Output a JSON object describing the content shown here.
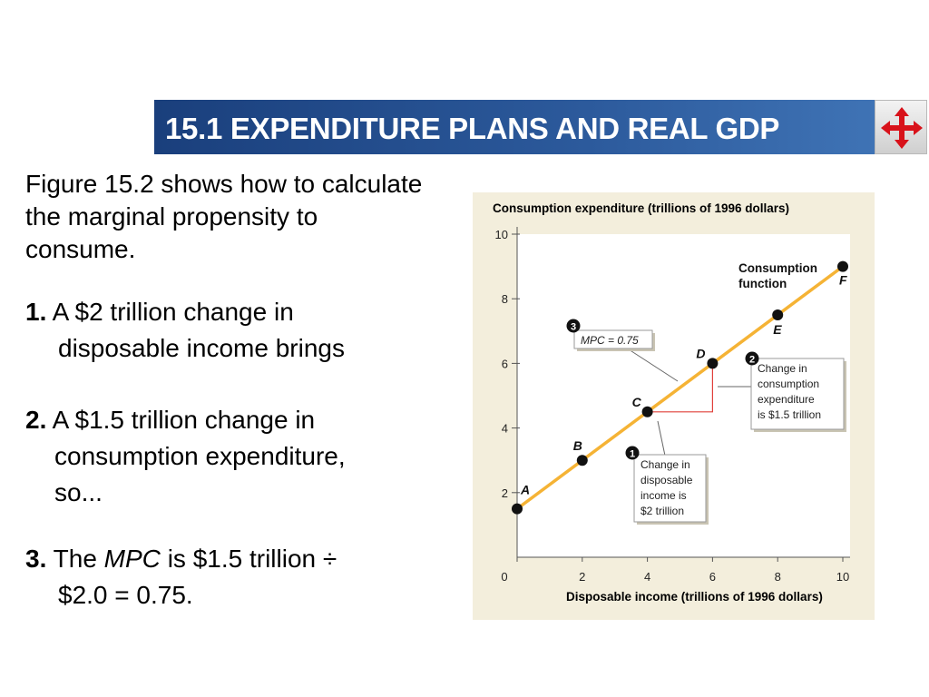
{
  "header": {
    "title": "15.1 EXPENDITURE PLANS AND REAL GDP",
    "nav_icon": "four-arrows-navigation-icon",
    "accent": "#2c5a9c",
    "nav_color": "#d8121a"
  },
  "text": {
    "intro": "Figure 15.2 shows how to calculate the marginal propensity to consume.",
    "steps": [
      {
        "number": "1.",
        "line1": "A $2 trillion change in",
        "line2": "disposable income brings"
      },
      {
        "number": "2.",
        "line1": "A $1.5 trillion change in",
        "line2": "consumption expenditure,",
        "line3": "so..."
      },
      {
        "number": "3.",
        "prefix": "The",
        "mpc": "MPC",
        "line1_rest": "is $1.5 trillion ÷",
        "line2": "$2.0 = 0.75."
      }
    ]
  },
  "chart_data": {
    "type": "line",
    "ylabel": "Consumption expenditure (trillions of 1996 dollars)",
    "xlabel": "Disposable income (trillions of 1996 dollars)",
    "xlim": [
      0,
      10
    ],
    "ylim": [
      0,
      10
    ],
    "xticks": [
      "0",
      "2",
      "4",
      "6",
      "8",
      "10"
    ],
    "yticks": [
      "2",
      "4",
      "6",
      "8",
      "10"
    ],
    "line_color": "#f5b335",
    "series": [
      {
        "values": [
          [
            0,
            1.5
          ],
          [
            10,
            9.0
          ]
        ]
      }
    ],
    "points": [
      {
        "label": "A",
        "x": 0,
        "y": 1.5
      },
      {
        "label": "B",
        "x": 2,
        "y": 3.0
      },
      {
        "label": "C",
        "x": 4,
        "y": 4.5
      },
      {
        "label": "D",
        "x": 6,
        "y": 6.0
      },
      {
        "label": "E",
        "x": 8,
        "y": 7.5
      },
      {
        "label": "F",
        "x": 10,
        "y": 9.0
      }
    ],
    "line_label": [
      "Consumption",
      "function"
    ],
    "triangle": {
      "from_x": 4,
      "to_x": 6,
      "base_y": 4.5,
      "top_y": 6.0,
      "color": "#e0403a"
    },
    "annotations": [
      {
        "marker": "1",
        "lines": [
          "Change in",
          "disposable",
          "income is",
          "$2 trillion"
        ]
      },
      {
        "marker": "2",
        "lines": [
          "Change in",
          "consumption",
          "expenditure",
          "is $1.5 trillion"
        ]
      },
      {
        "marker": "3",
        "lines": [
          "MPC = 0.75"
        ]
      }
    ]
  }
}
